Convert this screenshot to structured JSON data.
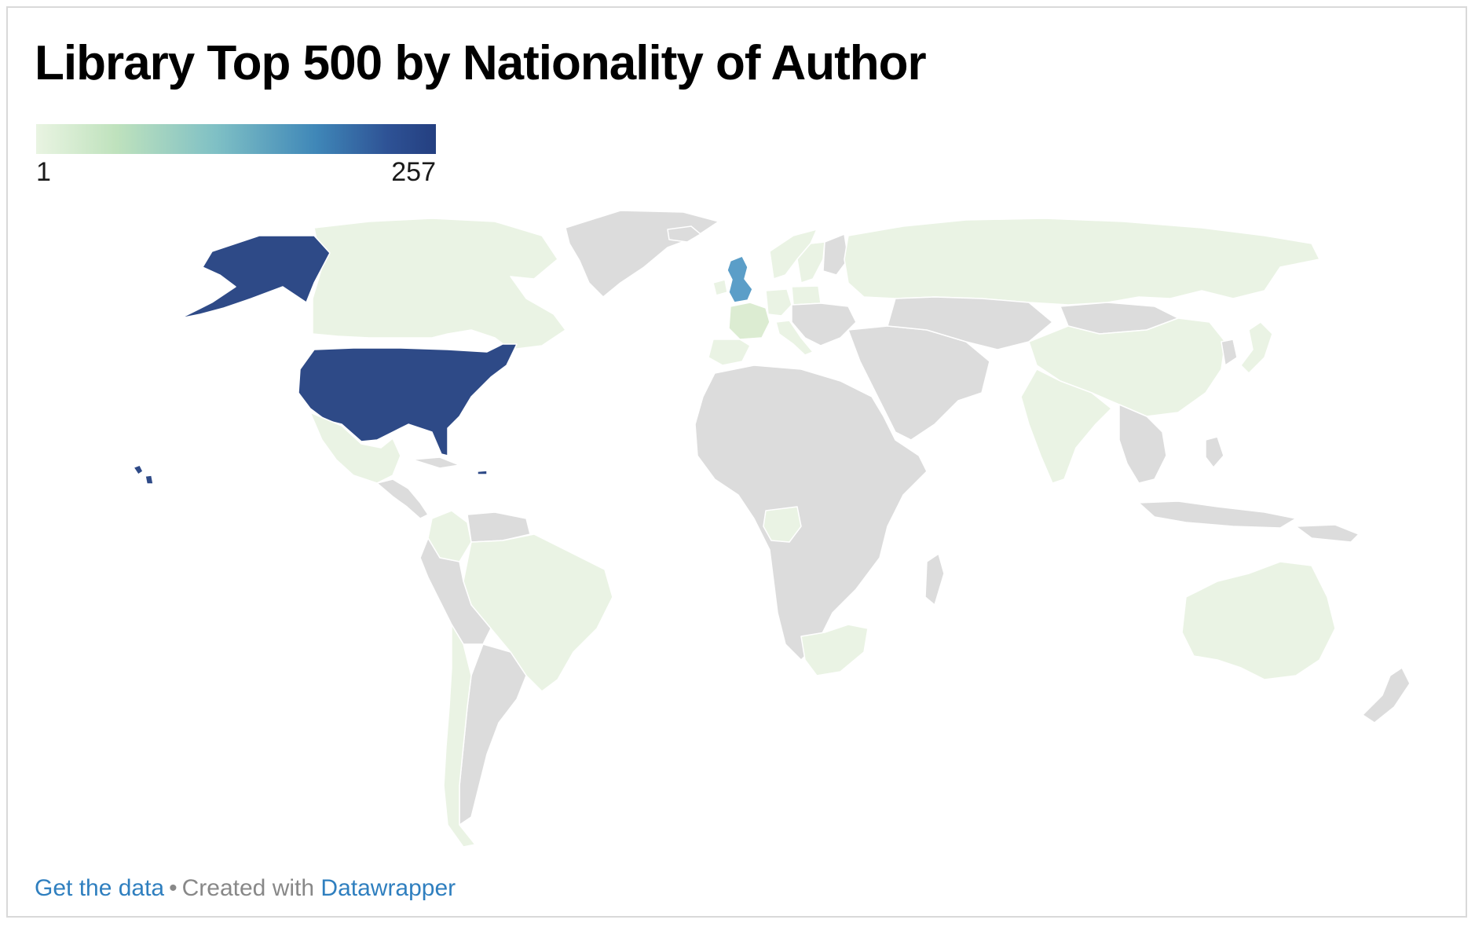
{
  "title": "Library Top 500 by Nationality of Author",
  "legend": {
    "min_label": "1",
    "max_label": "257",
    "gradient": [
      "#e9f4e2",
      "#bfe2bd",
      "#7fc0c5",
      "#3f87b8",
      "#2e5295",
      "#243f80"
    ]
  },
  "colors": {
    "no_data": "#dcdcdc",
    "border": "#ffffff",
    "low": "#eaf3e4",
    "lowish": "#dcecd2",
    "mid": "#5b9ec8",
    "high": "#2e4a87"
  },
  "map_data": {
    "type": "choropleth",
    "regions": [
      {
        "name": "United States",
        "level": "high"
      },
      {
        "name": "United Kingdom",
        "level": "mid"
      },
      {
        "name": "France",
        "level": "lowish"
      },
      {
        "name": "Canada",
        "level": "low"
      },
      {
        "name": "Russia",
        "level": "low"
      },
      {
        "name": "China",
        "level": "low"
      },
      {
        "name": "India",
        "level": "low"
      },
      {
        "name": "Australia",
        "level": "low"
      },
      {
        "name": "Brazil",
        "level": "low"
      },
      {
        "name": "Mexico",
        "level": "low"
      },
      {
        "name": "Nigeria",
        "level": "low"
      },
      {
        "name": "South Africa",
        "level": "low"
      },
      {
        "name": "Spain",
        "level": "low"
      },
      {
        "name": "Ireland",
        "level": "low"
      },
      {
        "name": "Japan",
        "level": "low"
      },
      {
        "name": "Colombia",
        "level": "low"
      },
      {
        "name": "Chile",
        "level": "low"
      },
      {
        "name": "Germany",
        "level": "low"
      },
      {
        "name": "Italy",
        "level": "low"
      },
      {
        "name": "Norway",
        "level": "low"
      },
      {
        "name": "Sweden",
        "level": "low"
      },
      {
        "name": "Poland",
        "level": "low"
      },
      {
        "name": "Greenland",
        "level": "none"
      },
      {
        "name": "Africa (other)",
        "level": "none"
      },
      {
        "name": "Middle East",
        "level": "none"
      },
      {
        "name": "Central Asia",
        "level": "none"
      },
      {
        "name": "Southeast Asia",
        "level": "none"
      },
      {
        "name": "South America (other)",
        "level": "none"
      }
    ]
  },
  "footer": {
    "get_data": "Get the data",
    "separator": "•",
    "created_with": "Created with",
    "datawrapper": "Datawrapper"
  }
}
